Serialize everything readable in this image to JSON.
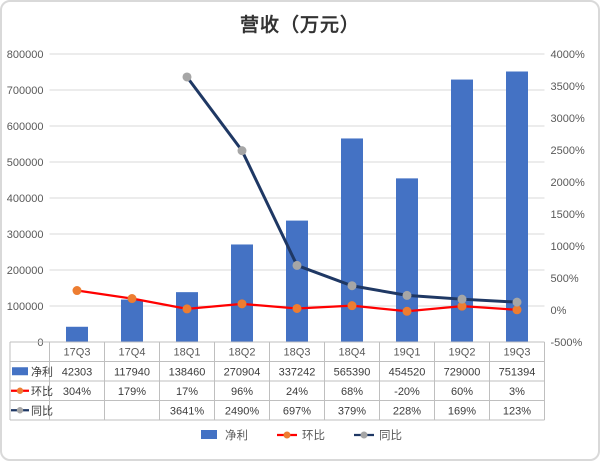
{
  "chart_data": {
    "type": "combo-bar-line",
    "title": "营收（万元）",
    "categories": [
      "17Q3",
      "17Q4",
      "18Q1",
      "18Q2",
      "18Q3",
      "18Q4",
      "19Q1",
      "19Q2",
      "19Q3"
    ],
    "series": [
      {
        "key": "net-profit",
        "name": "净利",
        "type": "bar",
        "axis": "left",
        "color": "#4472C4",
        "values": [
          42303,
          117940,
          138460,
          270904,
          337242,
          565390,
          454520,
          729000,
          751394
        ],
        "labels": [
          "42303",
          "117940",
          "138460",
          "270904",
          "337242",
          "565390",
          "454520",
          "729000",
          "751394"
        ]
      },
      {
        "key": "qoq",
        "name": "环比",
        "type": "line",
        "axis": "right",
        "color": "#FF0000",
        "marker": "#ED7D31",
        "values": [
          304,
          179,
          17,
          96,
          24,
          68,
          -20,
          60,
          3
        ],
        "labels": [
          "304%",
          "179%",
          "17%",
          "96%",
          "24%",
          "68%",
          "-20%",
          "60%",
          "3%"
        ]
      },
      {
        "key": "yoy",
        "name": "同比",
        "type": "line",
        "axis": "right",
        "color": "#1F3864",
        "marker": "#A6A6A6",
        "values": [
          null,
          null,
          3641,
          2490,
          697,
          379,
          228,
          169,
          123
        ],
        "labels": [
          "",
          "",
          "3641%",
          "2490%",
          "697%",
          "379%",
          "228%",
          "169%",
          "123%"
        ]
      }
    ],
    "left_axis": {
      "min": 0,
      "max": 800000,
      "step": 100000,
      "labels": [
        "0",
        "100000",
        "200000",
        "300000",
        "400000",
        "500000",
        "600000",
        "700000",
        "800000"
      ]
    },
    "right_axis": {
      "min": -500,
      "max": 4000,
      "step": 500,
      "labels": [
        "-500%",
        "0%",
        "500%",
        "1000%",
        "1500%",
        "2000%",
        "2500%",
        "3000%",
        "3500%",
        "4000%"
      ]
    },
    "grid": true,
    "legend_position": "bottom",
    "data_table": true
  }
}
